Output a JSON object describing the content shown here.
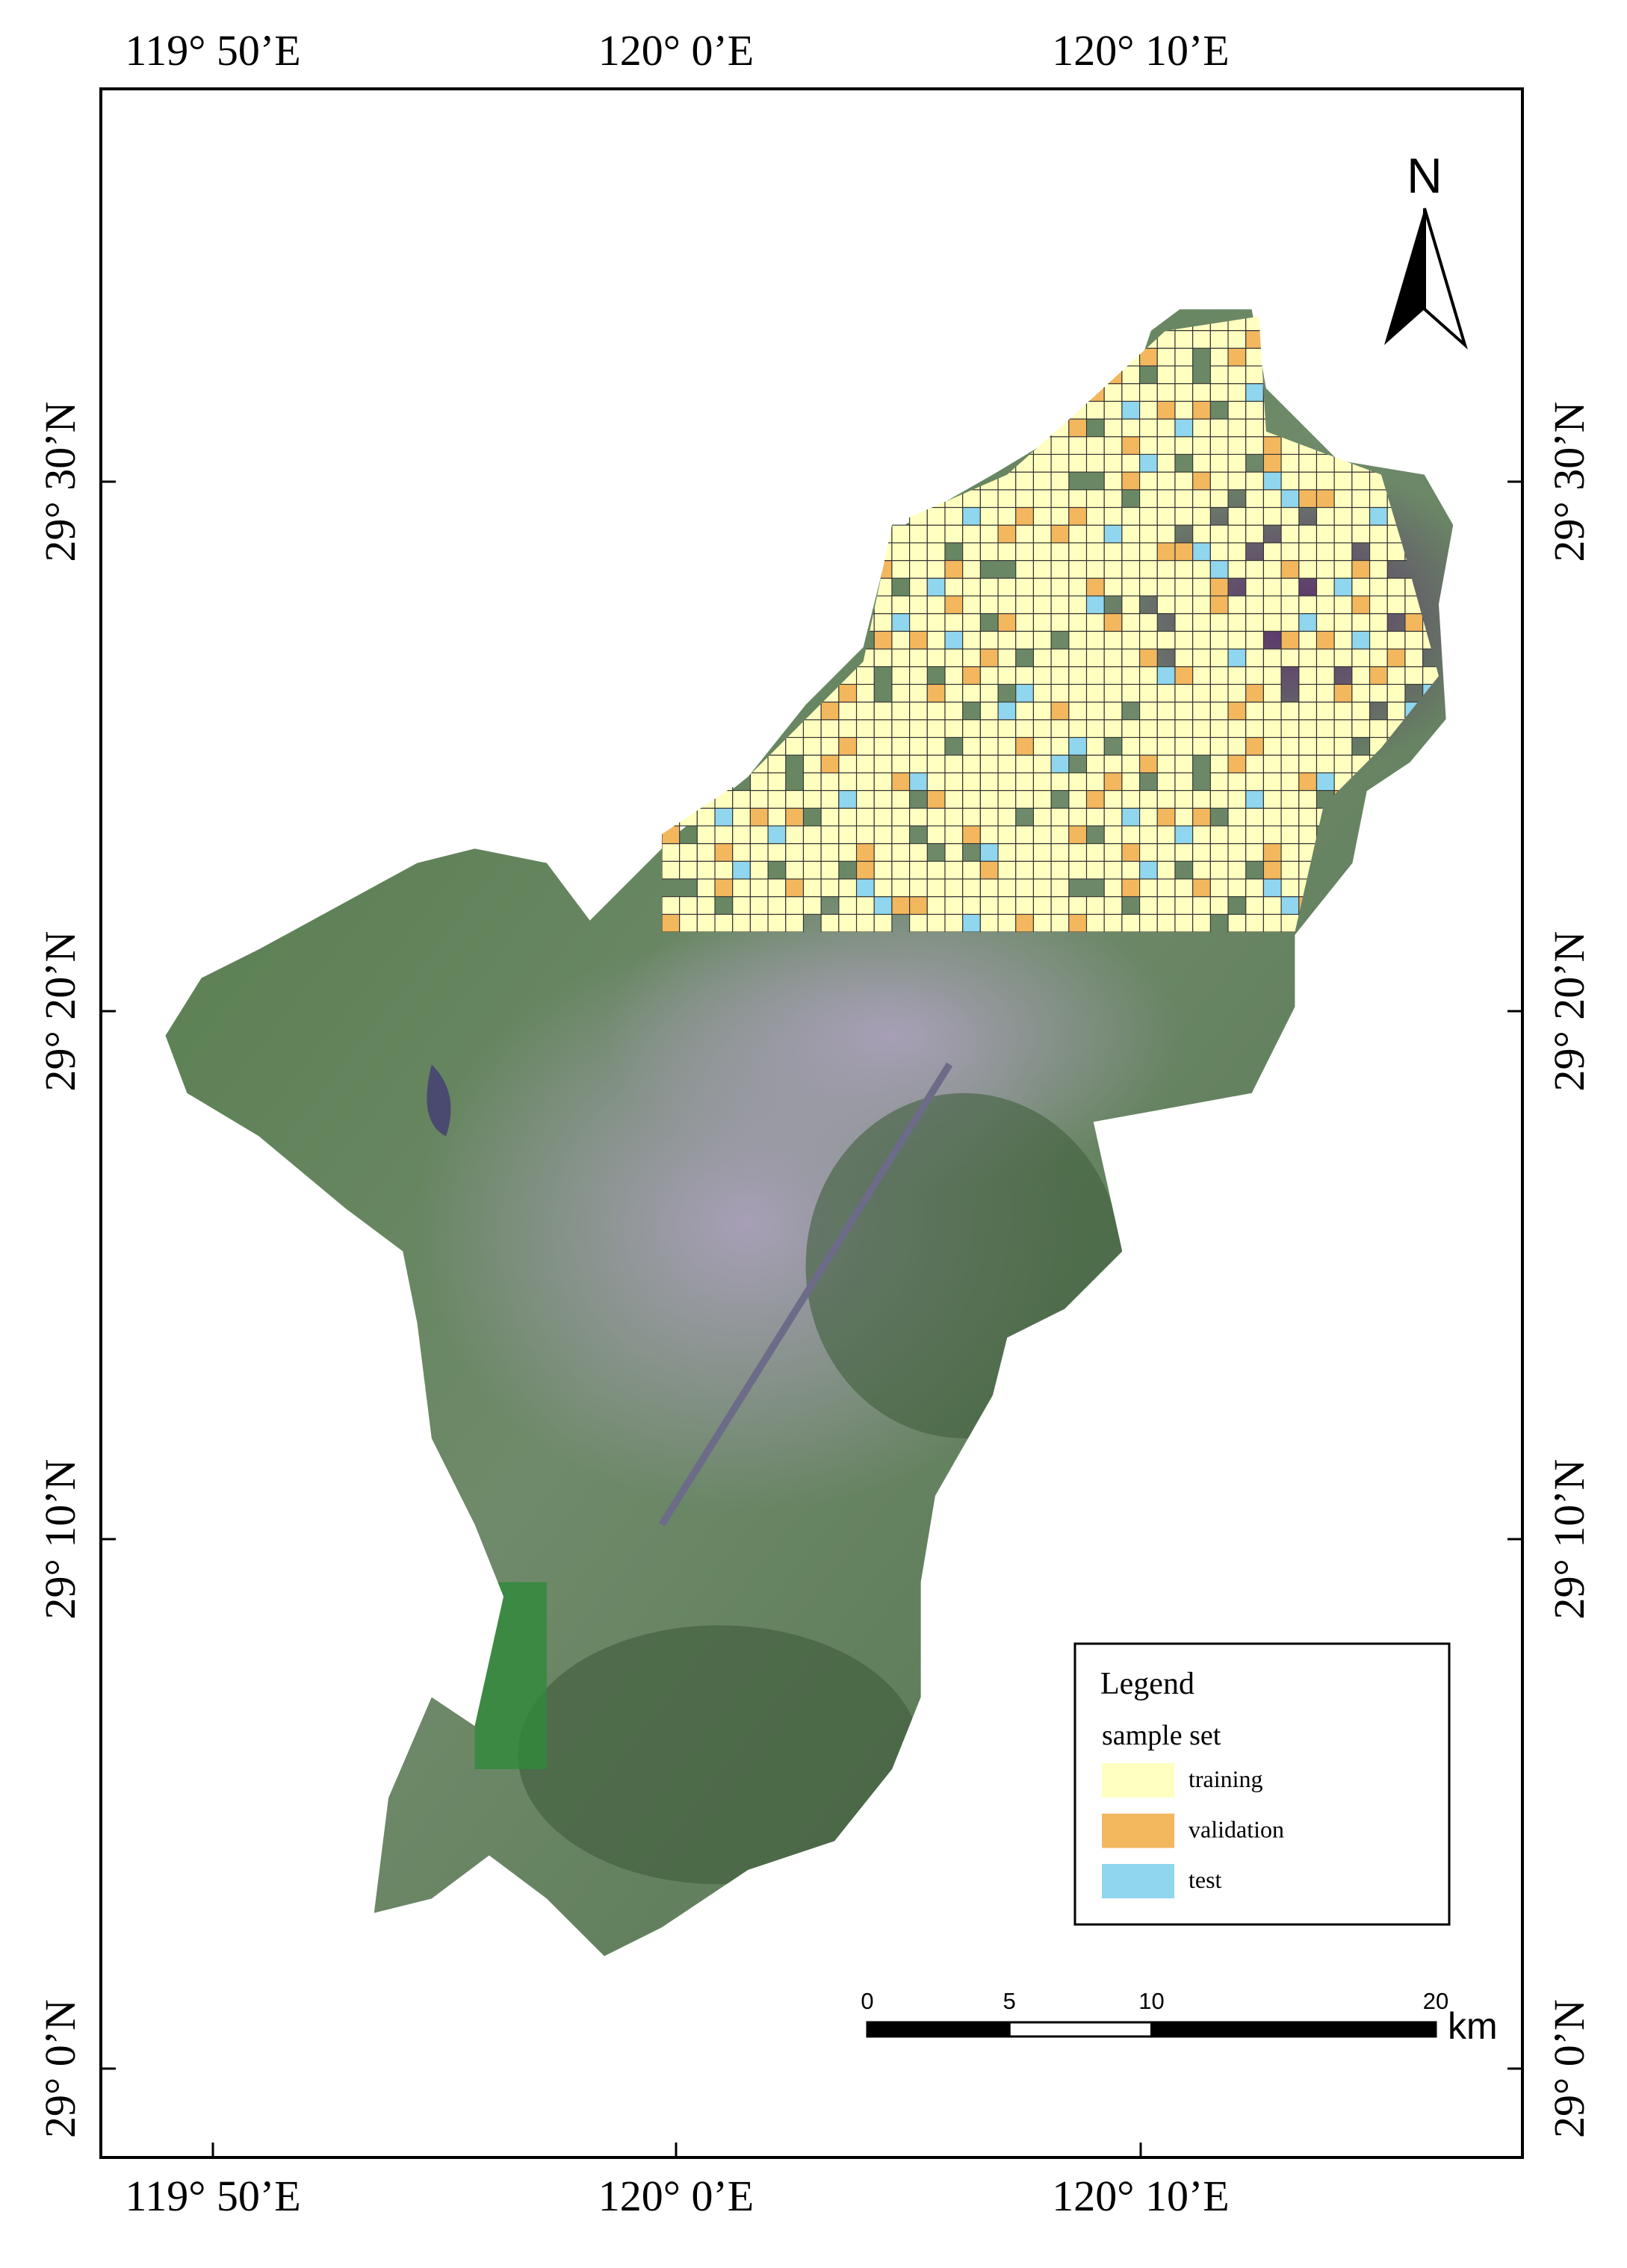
{
  "map": {
    "north": "N",
    "longitude_labels": [
      "119° 50’E",
      "120° 0’E",
      "120° 10’E"
    ],
    "latitude_labels": [
      "29° 30’N",
      "29° 20’N",
      "29° 10’N",
      "29° 0’N"
    ],
    "legend": {
      "title": "Legend",
      "subtitle": "sample set",
      "items": [
        {
          "label": "training",
          "color": "#ffffc0"
        },
        {
          "label": "validation",
          "color": "#f3b75e"
        },
        {
          "label": "test",
          "color": "#8fd6ee"
        }
      ]
    },
    "scale_bar": {
      "ticks": [
        0,
        5,
        10,
        20
      ],
      "unit": "km"
    }
  }
}
